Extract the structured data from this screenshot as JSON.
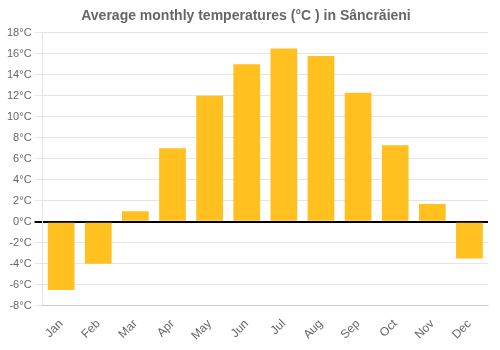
{
  "chart_data": {
    "type": "bar",
    "title": "Average monthly temperatures (°C ) in Sâncrăieni",
    "categories": [
      "Jan",
      "Feb",
      "Mar",
      "Apr",
      "May",
      "Jun",
      "Jul",
      "Aug",
      "Sep",
      "Oct",
      "Nov",
      "Dec"
    ],
    "values": [
      -6.5,
      -4.0,
      1.0,
      7.0,
      12.0,
      15.0,
      16.5,
      15.8,
      12.3,
      7.3,
      1.7,
      -3.5
    ],
    "color": "#FFC020",
    "ylim": [
      -8,
      18
    ],
    "yticks": [
      {
        "value": -8,
        "label": "-8°C"
      },
      {
        "value": -6,
        "label": "-6°C"
      },
      {
        "value": -4,
        "label": "-4°C"
      },
      {
        "value": -2,
        "label": "-2°C"
      },
      {
        "value": 0,
        "label": "0°C"
      },
      {
        "value": 2,
        "label": "2°C"
      },
      {
        "value": 4,
        "label": "4°C"
      },
      {
        "value": 6,
        "label": "6°C"
      },
      {
        "value": 8,
        "label": "8°C"
      },
      {
        "value": 10,
        "label": "10°C"
      },
      {
        "value": 12,
        "label": "12°C"
      },
      {
        "value": 14,
        "label": "14°C"
      },
      {
        "value": 16,
        "label": "16°C"
      },
      {
        "value": 18,
        "label": "18°C"
      }
    ],
    "grid": true
  }
}
